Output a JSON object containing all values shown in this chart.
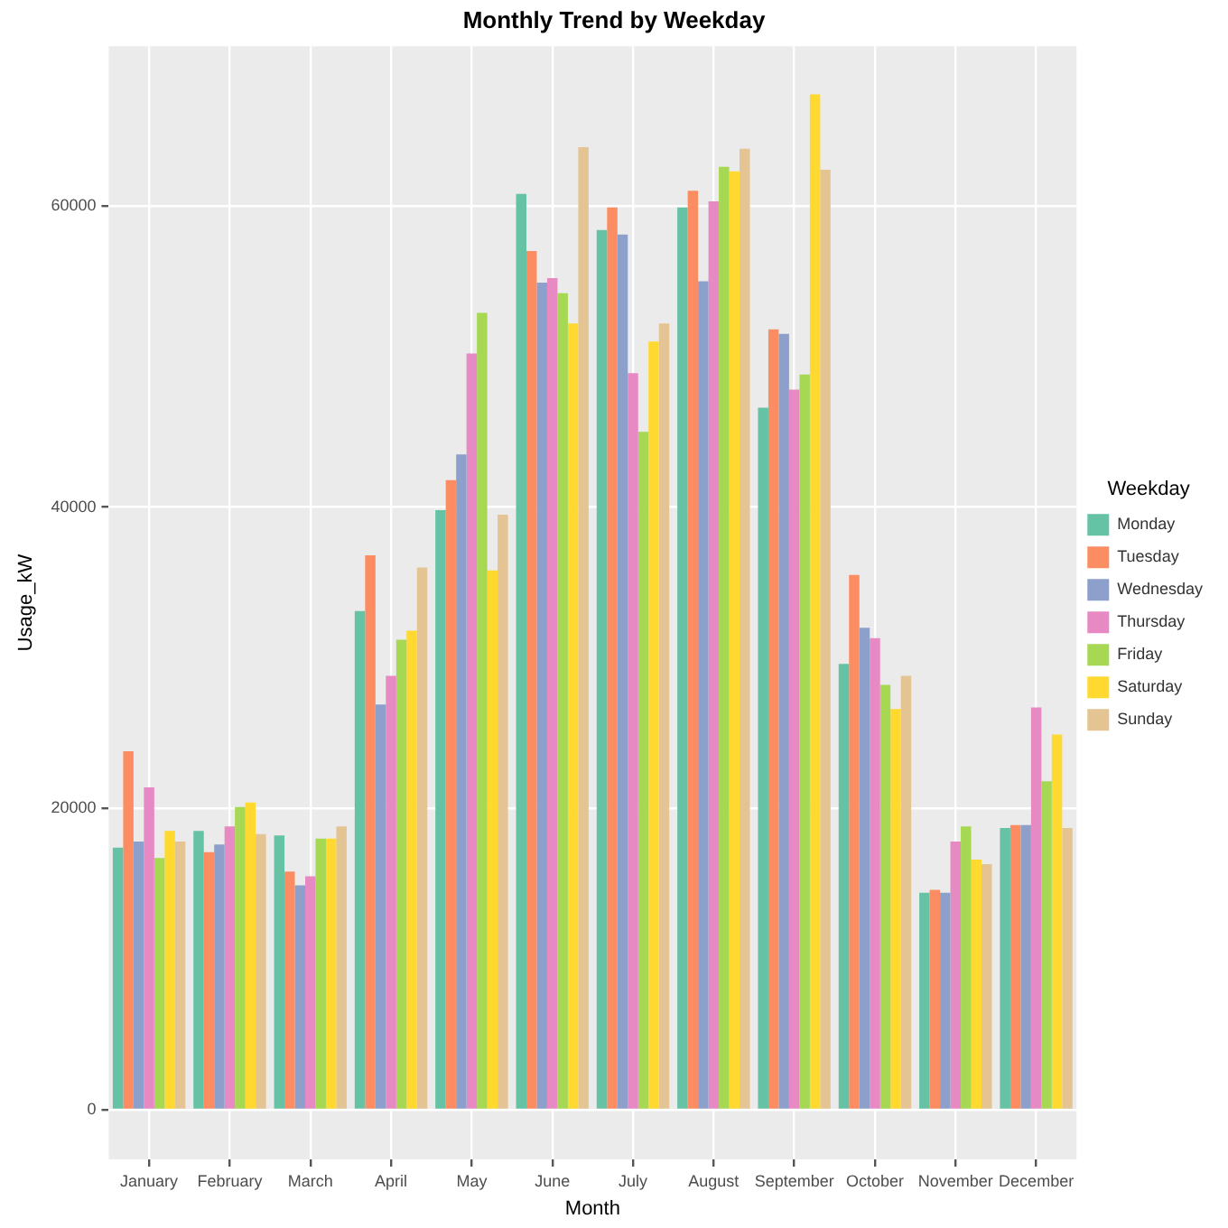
{
  "chart_data": {
    "type": "bar",
    "title": "Monthly Trend by Weekday",
    "xlabel": "Month",
    "ylabel": "Usage_kW",
    "legend_title": "Weekday",
    "legend": "right",
    "grid": true,
    "categories": [
      "January",
      "February",
      "March",
      "April",
      "May",
      "June",
      "July",
      "August",
      "September",
      "October",
      "November",
      "December"
    ],
    "ylim": [
      -3300,
      70600
    ],
    "yticks": [
      0,
      20000,
      40000,
      60000
    ],
    "series": [
      {
        "name": "Monday",
        "color": "#66c2a5",
        "values": [
          17400,
          18500,
          18200,
          33100,
          39800,
          60800,
          58400,
          59900,
          46600,
          29600,
          14400,
          18700
        ]
      },
      {
        "name": "Tuesday",
        "color": "#fc8d62",
        "values": [
          23800,
          17100,
          15800,
          36800,
          41800,
          57000,
          59900,
          61000,
          51800,
          35500,
          14600,
          18900
        ]
      },
      {
        "name": "Wednesday",
        "color": "#8da0cb",
        "values": [
          17800,
          17600,
          14900,
          26900,
          43500,
          54900,
          58100,
          55000,
          51500,
          32000,
          14400,
          18900
        ]
      },
      {
        "name": "Thursday",
        "color": "#e78ac3",
        "values": [
          21400,
          18800,
          15500,
          28800,
          50200,
          55200,
          48900,
          60300,
          47800,
          31300,
          17800,
          26700
        ]
      },
      {
        "name": "Friday",
        "color": "#a6d854",
        "values": [
          16700,
          20100,
          18000,
          31200,
          52900,
          54200,
          45000,
          62600,
          48800,
          28200,
          18800,
          21800
        ]
      },
      {
        "name": "Saturday",
        "color": "#ffd92f",
        "values": [
          18500,
          20400,
          18000,
          31800,
          35800,
          52200,
          51000,
          62300,
          67400,
          26600,
          16600,
          24900
        ]
      },
      {
        "name": "Sunday",
        "color": "#e5c494",
        "values": [
          17800,
          18300,
          18800,
          36000,
          39500,
          63900,
          52200,
          63800,
          62400,
          28800,
          16300,
          18700
        ]
      }
    ]
  }
}
